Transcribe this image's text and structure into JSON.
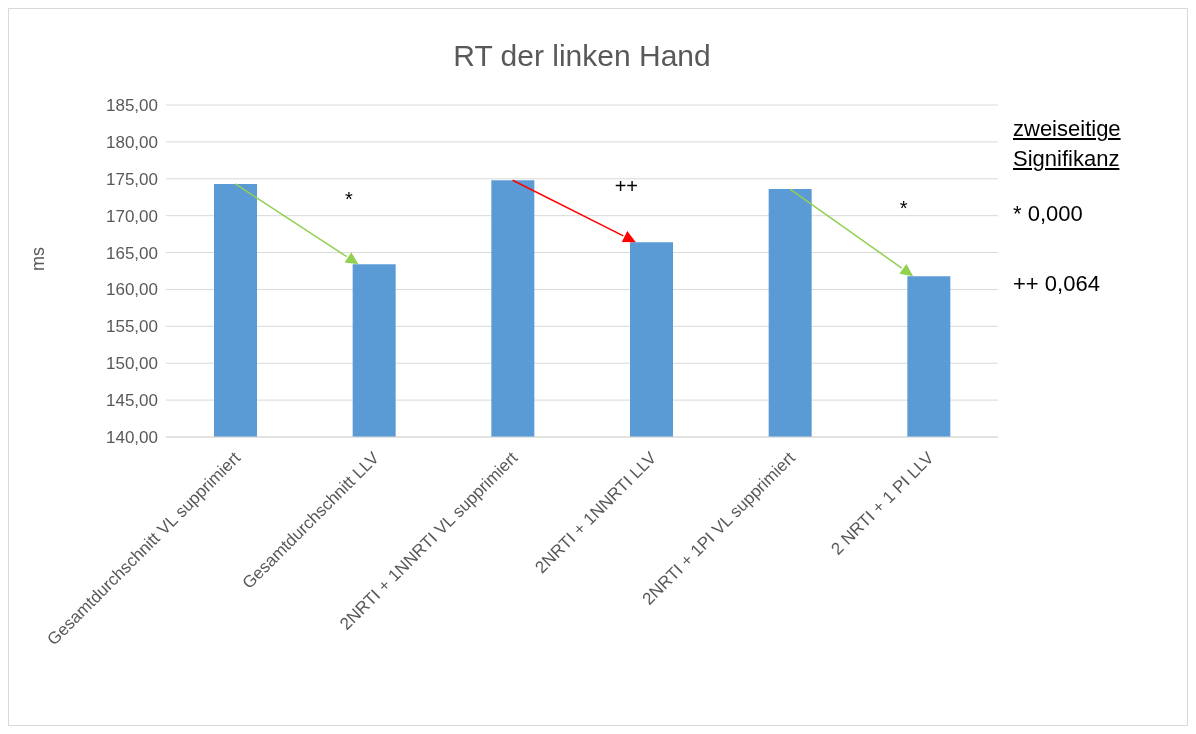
{
  "chart_data": {
    "type": "bar",
    "title": "RT der linken Hand",
    "ylabel": "ms",
    "categories": [
      "Gesamtdurchschnitt VL supprimiert",
      "Gesamtdurchschnitt LLV",
      "2NRTI + 1NNRTI VL supprimiert",
      "2NRTI + 1NNRTI LLV",
      "2NRTI + 1PI VL supprimiert",
      "2 NRTI + 1 PI LLV"
    ],
    "values": [
      174.3,
      163.4,
      174.8,
      166.4,
      173.6,
      161.8
    ],
    "color": "#5b9bd5",
    "ylim": [
      140,
      185
    ],
    "yticks": [
      {
        "value": 140,
        "label": "140,00"
      },
      {
        "value": 145,
        "label": "145,00"
      },
      {
        "value": 150,
        "label": "150,00"
      },
      {
        "value": 155,
        "label": "155,00"
      },
      {
        "value": 160,
        "label": "160,00"
      },
      {
        "value": 165,
        "label": "165,00"
      },
      {
        "value": 170,
        "label": "170,00"
      },
      {
        "value": 175,
        "label": "175,00"
      },
      {
        "value": 180,
        "label": "180,00"
      },
      {
        "value": 185,
        "label": "185,00"
      }
    ],
    "grid": "y",
    "annotations": [
      "*",
      "++",
      "*",
      "zweiseitige Signifikanz",
      "* 0,000",
      "++ 0,064"
    ]
  }
}
